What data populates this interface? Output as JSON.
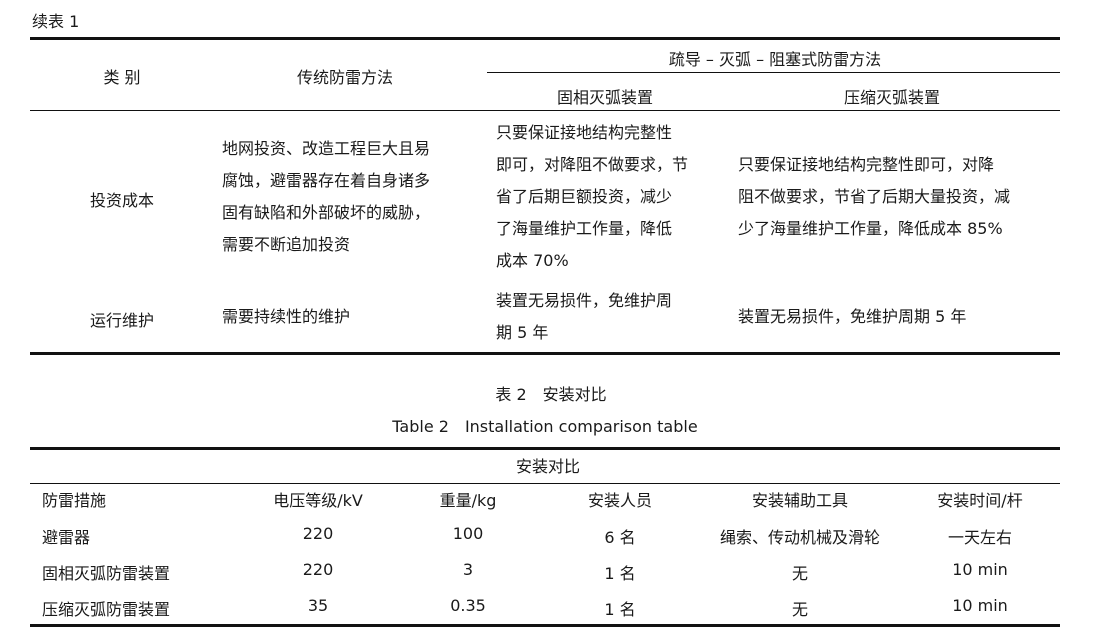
{
  "table1": {
    "continued_label": "续表 1",
    "header": {
      "category": "类 别",
      "traditional": "传统防雷方法",
      "group": "疏导 – 灭弧 – 阻塞式防雷方法",
      "solid": "固相灭弧装置",
      "compressed": "压缩灭弧装置"
    },
    "rows": [
      {
        "category": "投资成本",
        "traditional": [
          "地网投资、改造工程巨大且易",
          "腐蚀，避雷器存在着自身诸多",
          "固有缺陷和外部破坏的威胁，",
          "需要不断追加投资"
        ],
        "solid": [
          "只要保证接地结构完整性",
          "即可，对降阻不做要求，节",
          "省了后期巨额投资，减少",
          "了海量维护工作量，降低",
          "成本 70%"
        ],
        "compressed": [
          "只要保证接地结构完整性即可，对降",
          "阻不做要求，节省了后期大量投资，减",
          "少了海量维护工作量，降低成本 85%"
        ]
      },
      {
        "category": "运行维护",
        "traditional": [
          "需要持续性的维护"
        ],
        "solid": [
          "装置无易损件，免维护周",
          "期 5 年"
        ],
        "compressed": [
          "装置无易损件，免维护周期 5 年"
        ]
      }
    ]
  },
  "table2": {
    "caption_cn": "表 2　安装对比",
    "caption_en": "Table 2　Installation comparison table",
    "group_header": "安装对比",
    "columns": [
      "防雷措施",
      "电压等级/kV",
      "重量/kg",
      "安装人员",
      "安装辅助工具",
      "安装时间/杆"
    ],
    "rows": [
      [
        "避雷器",
        "220",
        "100",
        "6 名",
        "绳索、传动机械及滑轮",
        "一天左右"
      ],
      [
        "固相灭弧防雷装置",
        "220",
        "3",
        "1 名",
        "无",
        "10 min"
      ],
      [
        "压缩灭弧防雷装置",
        "35",
        "0.35",
        "1 名",
        "无",
        "10 min"
      ]
    ]
  }
}
